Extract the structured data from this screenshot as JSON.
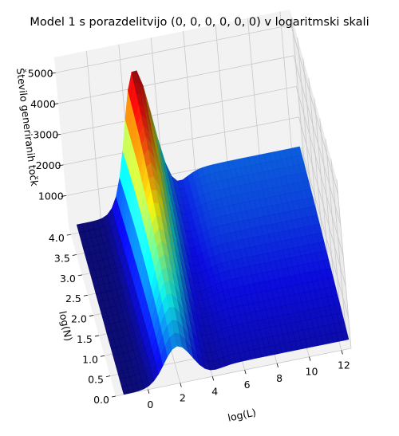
{
  "chart_data": {
    "type": "surface3d",
    "title": "Model 1 s porazdelitvijo (0, 0, 0, 0, 0, 0) v logaritmski skali",
    "xlabel": "log(L)",
    "ylabel": "log(N)",
    "zlabel": "Število generiranih točk",
    "xlim": [
      -2,
      12.6
    ],
    "ylim": [
      0,
      4.2
    ],
    "zlim": [
      0,
      5500
    ],
    "x_ticks": [
      "0",
      "2",
      "4",
      "6",
      "8",
      "10",
      "12"
    ],
    "y_ticks": [
      "0.0",
      "0.5",
      "1.0",
      "1.5",
      "2.0",
      "2.5",
      "3.0",
      "3.5",
      "4.0"
    ],
    "z_ticks": [
      "1000",
      "2000",
      "3000",
      "4000",
      "5000"
    ],
    "colormap": "jet",
    "grid": true,
    "surface_description": "ridge along log(L) ≈ 2.5 (peak ≈ 4600 near log(N) ≈ 4), plateau ≈ 1000 for large log(L)",
    "ridge_profile": {
      "log_N": [
        0.0,
        1.0,
        2.0,
        3.0,
        4.2
      ],
      "peak_log_L": [
        2.0,
        2.2,
        2.4,
        2.6,
        2.8
      ],
      "peak_height": [
        1200,
        2100,
        3000,
        3900,
        4600
      ],
      "plateau_height": [
        300,
        500,
        700,
        900,
        1050
      ]
    }
  },
  "colors": {
    "pane": "#f2f2f2",
    "pane_side": "#ebebeb",
    "grid": "#c8c8c8"
  }
}
